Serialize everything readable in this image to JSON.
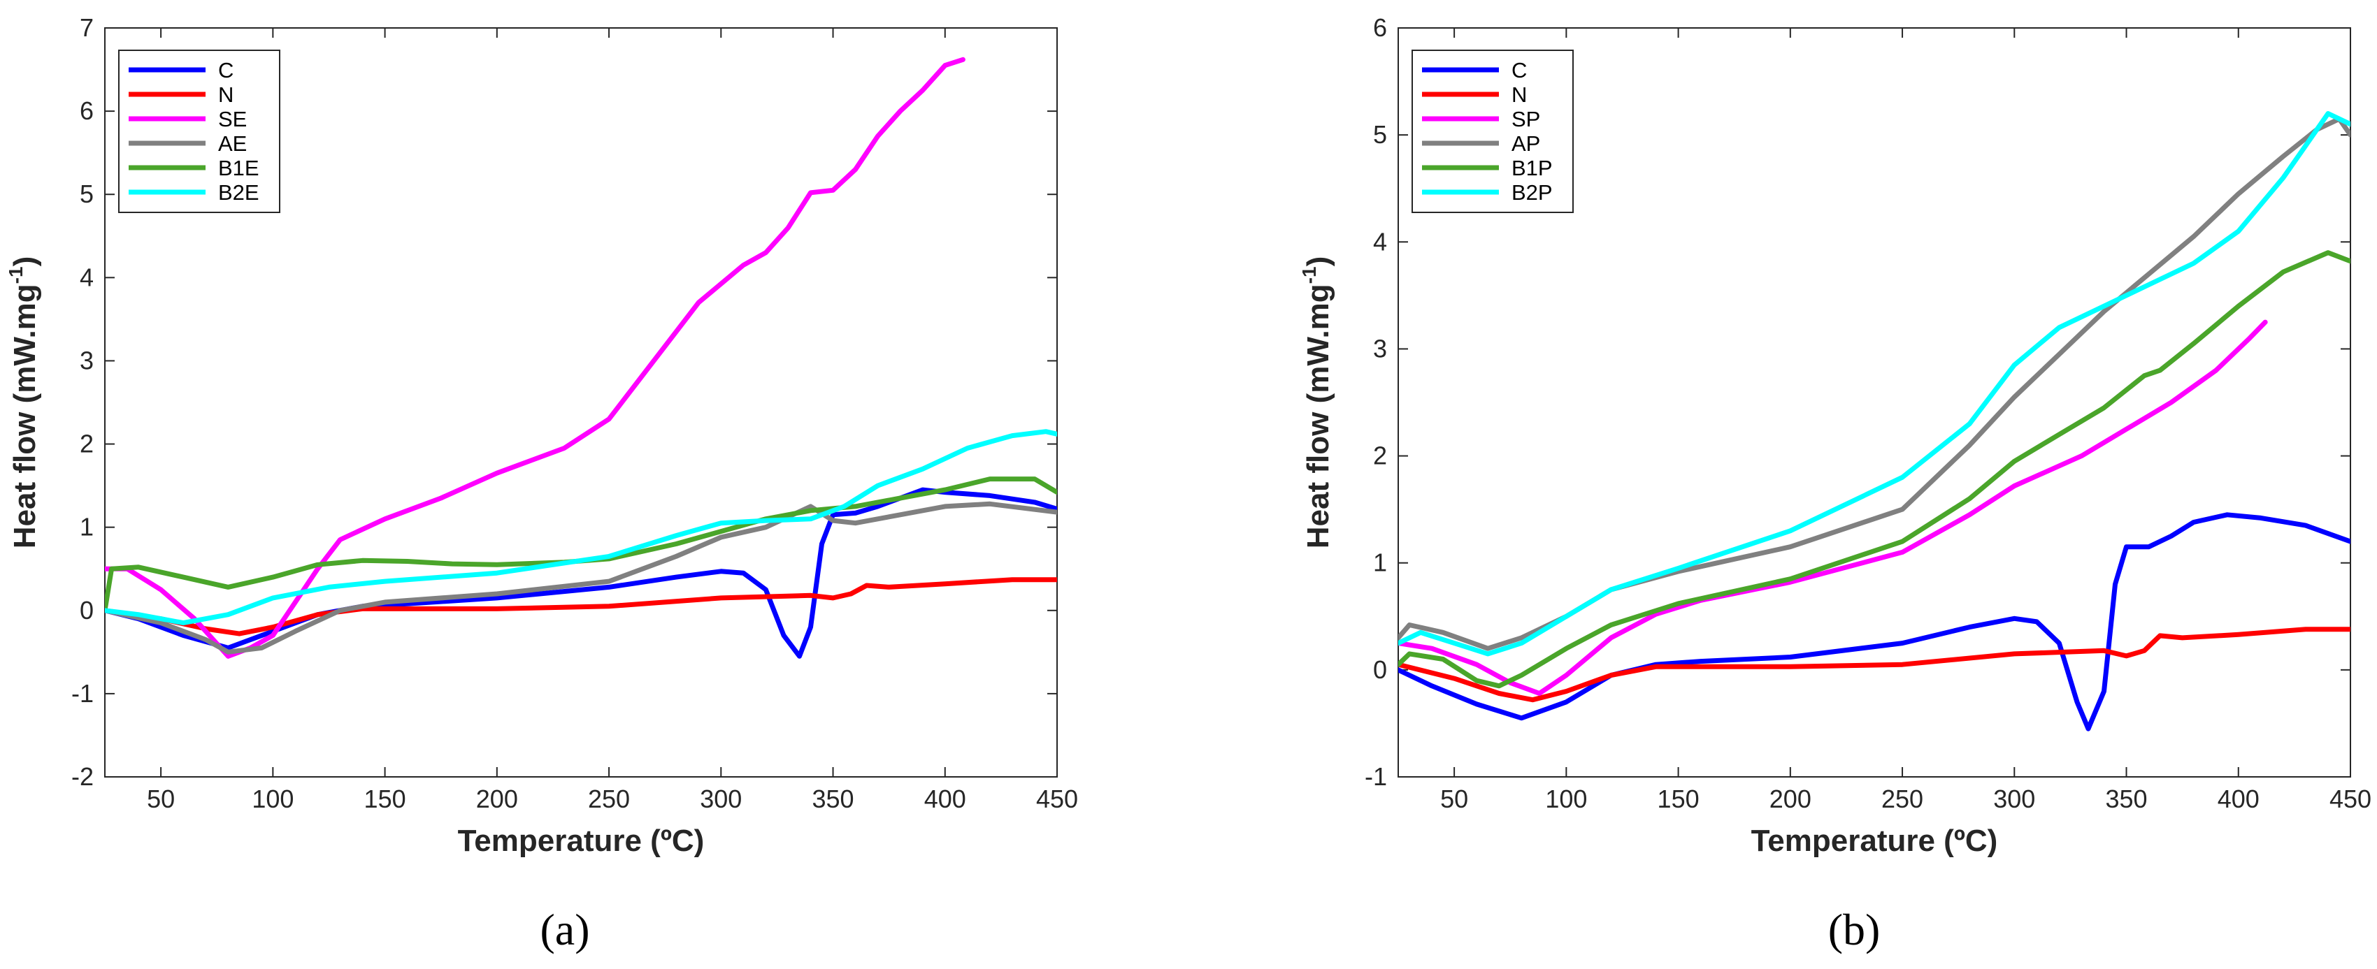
{
  "chart_data": [
    {
      "type": "line",
      "panel": "a",
      "xlabel": "Temperature (ºC)",
      "ylabel": "Heat flow (mW.mg-1)",
      "xlim": [
        25,
        450
      ],
      "ylim": [
        -2,
        7
      ],
      "xticks": [
        50,
        100,
        150,
        200,
        250,
        300,
        350,
        400,
        450
      ],
      "yticks": [
        -2,
        -1,
        0,
        1,
        2,
        3,
        4,
        5,
        6,
        7
      ],
      "grid": false,
      "legend_position": "top-left",
      "series": [
        {
          "name": "C",
          "color": "#0000ff",
          "points": [
            [
              25,
              0
            ],
            [
              40,
              -0.1
            ],
            [
              60,
              -0.3
            ],
            [
              80,
              -0.45
            ],
            [
              100,
              -0.25
            ],
            [
              120,
              -0.05
            ],
            [
              140,
              0.05
            ],
            [
              160,
              0.08
            ],
            [
              200,
              0.15
            ],
            [
              250,
              0.28
            ],
            [
              280,
              0.4
            ],
            [
              300,
              0.47
            ],
            [
              310,
              0.45
            ],
            [
              320,
              0.25
            ],
            [
              328,
              -0.3
            ],
            [
              335,
              -0.55
            ],
            [
              340,
              -0.2
            ],
            [
              345,
              0.8
            ],
            [
              350,
              1.15
            ],
            [
              360,
              1.17
            ],
            [
              370,
              1.25
            ],
            [
              380,
              1.35
            ],
            [
              390,
              1.45
            ],
            [
              400,
              1.42
            ],
            [
              420,
              1.38
            ],
            [
              440,
              1.3
            ],
            [
              450,
              1.22
            ]
          ]
        },
        {
          "name": "N",
          "color": "#ff0000",
          "points": [
            [
              25,
              0
            ],
            [
              50,
              -0.1
            ],
            [
              70,
              -0.22
            ],
            [
              85,
              -0.28
            ],
            [
              100,
              -0.2
            ],
            [
              120,
              -0.05
            ],
            [
              140,
              0.02
            ],
            [
              200,
              0.02
            ],
            [
              250,
              0.05
            ],
            [
              300,
              0.15
            ],
            [
              340,
              0.18
            ],
            [
              350,
              0.15
            ],
            [
              358,
              0.2
            ],
            [
              365,
              0.3
            ],
            [
              375,
              0.28
            ],
            [
              400,
              0.32
            ],
            [
              430,
              0.37
            ],
            [
              450,
              0.37
            ]
          ]
        },
        {
          "name": "SE",
          "color": "#ff00ff",
          "points": [
            [
              25,
              0.5
            ],
            [
              35,
              0.5
            ],
            [
              50,
              0.25
            ],
            [
              65,
              -0.1
            ],
            [
              80,
              -0.55
            ],
            [
              90,
              -0.45
            ],
            [
              100,
              -0.3
            ],
            [
              110,
              0.1
            ],
            [
              120,
              0.5
            ],
            [
              130,
              0.85
            ],
            [
              150,
              1.1
            ],
            [
              175,
              1.35
            ],
            [
              200,
              1.65
            ],
            [
              230,
              1.95
            ],
            [
              250,
              2.3
            ],
            [
              270,
              3.0
            ],
            [
              290,
              3.7
            ],
            [
              310,
              4.15
            ],
            [
              320,
              4.3
            ],
            [
              330,
              4.6
            ],
            [
              340,
              5.02
            ],
            [
              350,
              5.05
            ],
            [
              360,
              5.3
            ],
            [
              370,
              5.7
            ],
            [
              380,
              6.0
            ],
            [
              390,
              6.25
            ],
            [
              400,
              6.55
            ],
            [
              408,
              6.62
            ]
          ]
        },
        {
          "name": "AE",
          "color": "#808080",
          "points": [
            [
              25,
              0
            ],
            [
              50,
              -0.15
            ],
            [
              70,
              -0.35
            ],
            [
              80,
              -0.5
            ],
            [
              95,
              -0.45
            ],
            [
              110,
              -0.25
            ],
            [
              130,
              0
            ],
            [
              150,
              0.1
            ],
            [
              200,
              0.2
            ],
            [
              250,
              0.35
            ],
            [
              280,
              0.65
            ],
            [
              300,
              0.88
            ],
            [
              320,
              1.0
            ],
            [
              340,
              1.25
            ],
            [
              350,
              1.08
            ],
            [
              360,
              1.05
            ],
            [
              380,
              1.15
            ],
            [
              400,
              1.25
            ],
            [
              420,
              1.28
            ],
            [
              450,
              1.18
            ]
          ]
        },
        {
          "name": "B1E",
          "color": "#4aa52a",
          "points": [
            [
              25,
              0
            ],
            [
              28,
              0.5
            ],
            [
              40,
              0.52
            ],
            [
              60,
              0.4
            ],
            [
              80,
              0.28
            ],
            [
              100,
              0.4
            ],
            [
              120,
              0.55
            ],
            [
              140,
              0.6
            ],
            [
              160,
              0.59
            ],
            [
              180,
              0.56
            ],
            [
              200,
              0.55
            ],
            [
              230,
              0.58
            ],
            [
              250,
              0.62
            ],
            [
              280,
              0.8
            ],
            [
              300,
              0.95
            ],
            [
              320,
              1.1
            ],
            [
              340,
              1.2
            ],
            [
              360,
              1.25
            ],
            [
              380,
              1.35
            ],
            [
              400,
              1.45
            ],
            [
              420,
              1.58
            ],
            [
              440,
              1.58
            ],
            [
              450,
              1.42
            ]
          ]
        },
        {
          "name": "B2E",
          "color": "#00ffff",
          "points": [
            [
              25,
              0
            ],
            [
              40,
              -0.05
            ],
            [
              60,
              -0.15
            ],
            [
              80,
              -0.05
            ],
            [
              100,
              0.15
            ],
            [
              125,
              0.28
            ],
            [
              150,
              0.35
            ],
            [
              200,
              0.45
            ],
            [
              250,
              0.65
            ],
            [
              280,
              0.9
            ],
            [
              300,
              1.05
            ],
            [
              320,
              1.08
            ],
            [
              340,
              1.1
            ],
            [
              355,
              1.25
            ],
            [
              370,
              1.5
            ],
            [
              390,
              1.7
            ],
            [
              410,
              1.95
            ],
            [
              430,
              2.1
            ],
            [
              445,
              2.15
            ],
            [
              450,
              2.12
            ]
          ]
        }
      ]
    },
    {
      "type": "line",
      "panel": "b",
      "xlabel": "Temperature (ºC)",
      "ylabel": "Heat flow (mW.mg-1)",
      "xlim": [
        25,
        450
      ],
      "ylim": [
        -1,
        6
      ],
      "xticks": [
        50,
        100,
        150,
        200,
        250,
        300,
        350,
        400,
        450
      ],
      "yticks": [
        -1,
        0,
        1,
        2,
        3,
        4,
        5,
        6
      ],
      "grid": false,
      "legend_position": "top-left",
      "series": [
        {
          "name": "C",
          "color": "#0000ff",
          "points": [
            [
              25,
              0
            ],
            [
              40,
              -0.15
            ],
            [
              60,
              -0.32
            ],
            [
              80,
              -0.45
            ],
            [
              100,
              -0.3
            ],
            [
              120,
              -0.05
            ],
            [
              140,
              0.05
            ],
            [
              160,
              0.08
            ],
            [
              200,
              0.12
            ],
            [
              250,
              0.25
            ],
            [
              280,
              0.4
            ],
            [
              300,
              0.48
            ],
            [
              310,
              0.45
            ],
            [
              320,
              0.25
            ],
            [
              328,
              -0.3
            ],
            [
              333,
              -0.55
            ],
            [
              340,
              -0.2
            ],
            [
              345,
              0.8
            ],
            [
              350,
              1.15
            ],
            [
              360,
              1.15
            ],
            [
              370,
              1.25
            ],
            [
              380,
              1.38
            ],
            [
              395,
              1.45
            ],
            [
              410,
              1.42
            ],
            [
              430,
              1.35
            ],
            [
              450,
              1.2
            ]
          ]
        },
        {
          "name": "N",
          "color": "#ff0000",
          "points": [
            [
              25,
              0.05
            ],
            [
              50,
              -0.08
            ],
            [
              70,
              -0.22
            ],
            [
              85,
              -0.28
            ],
            [
              100,
              -0.2
            ],
            [
              120,
              -0.05
            ],
            [
              140,
              0.03
            ],
            [
              200,
              0.03
            ],
            [
              250,
              0.05
            ],
            [
              300,
              0.15
            ],
            [
              340,
              0.18
            ],
            [
              350,
              0.13
            ],
            [
              358,
              0.18
            ],
            [
              365,
              0.32
            ],
            [
              375,
              0.3
            ],
            [
              400,
              0.33
            ],
            [
              430,
              0.38
            ],
            [
              450,
              0.38
            ]
          ]
        },
        {
          "name": "SP",
          "color": "#ff00ff",
          "points": [
            [
              25,
              0.25
            ],
            [
              40,
              0.2
            ],
            [
              60,
              0.05
            ],
            [
              75,
              -0.12
            ],
            [
              88,
              -0.22
            ],
            [
              100,
              -0.05
            ],
            [
              120,
              0.3
            ],
            [
              140,
              0.52
            ],
            [
              160,
              0.65
            ],
            [
              200,
              0.82
            ],
            [
              250,
              1.1
            ],
            [
              280,
              1.45
            ],
            [
              300,
              1.72
            ],
            [
              330,
              2.0
            ],
            [
              350,
              2.25
            ],
            [
              370,
              2.5
            ],
            [
              390,
              2.8
            ],
            [
              405,
              3.1
            ],
            [
              412,
              3.25
            ]
          ]
        },
        {
          "name": "AP",
          "color": "#808080",
          "points": [
            [
              25,
              0.3
            ],
            [
              30,
              0.42
            ],
            [
              45,
              0.35
            ],
            [
              65,
              0.2
            ],
            [
              80,
              0.3
            ],
            [
              100,
              0.5
            ],
            [
              120,
              0.75
            ],
            [
              150,
              0.92
            ],
            [
              200,
              1.15
            ],
            [
              250,
              1.5
            ],
            [
              280,
              2.1
            ],
            [
              300,
              2.55
            ],
            [
              320,
              2.95
            ],
            [
              340,
              3.35
            ],
            [
              360,
              3.7
            ],
            [
              380,
              4.05
            ],
            [
              400,
              4.45
            ],
            [
              420,
              4.8
            ],
            [
              435,
              5.05
            ],
            [
              445,
              5.15
            ],
            [
              450,
              5.0
            ]
          ]
        },
        {
          "name": "B1P",
          "color": "#4aa52a",
          "points": [
            [
              25,
              0.05
            ],
            [
              30,
              0.15
            ],
            [
              45,
              0.1
            ],
            [
              60,
              -0.1
            ],
            [
              70,
              -0.15
            ],
            [
              80,
              -0.05
            ],
            [
              100,
              0.2
            ],
            [
              120,
              0.42
            ],
            [
              150,
              0.62
            ],
            [
              200,
              0.85
            ],
            [
              250,
              1.2
            ],
            [
              280,
              1.6
            ],
            [
              300,
              1.95
            ],
            [
              320,
              2.2
            ],
            [
              340,
              2.45
            ],
            [
              358,
              2.75
            ],
            [
              365,
              2.8
            ],
            [
              380,
              3.05
            ],
            [
              400,
              3.4
            ],
            [
              420,
              3.72
            ],
            [
              440,
              3.9
            ],
            [
              450,
              3.82
            ]
          ]
        },
        {
          "name": "B2P",
          "color": "#00ffff",
          "points": [
            [
              25,
              0.25
            ],
            [
              35,
              0.35
            ],
            [
              50,
              0.25
            ],
            [
              65,
              0.15
            ],
            [
              80,
              0.25
            ],
            [
              100,
              0.5
            ],
            [
              120,
              0.75
            ],
            [
              150,
              0.95
            ],
            [
              200,
              1.3
            ],
            [
              250,
              1.8
            ],
            [
              280,
              2.3
            ],
            [
              300,
              2.85
            ],
            [
              320,
              3.2
            ],
            [
              340,
              3.4
            ],
            [
              360,
              3.6
            ],
            [
              380,
              3.8
            ],
            [
              400,
              4.1
            ],
            [
              420,
              4.6
            ],
            [
              440,
              5.2
            ],
            [
              450,
              5.1
            ]
          ]
        }
      ]
    }
  ],
  "panel_labels": [
    "(a)",
    "(b)"
  ]
}
